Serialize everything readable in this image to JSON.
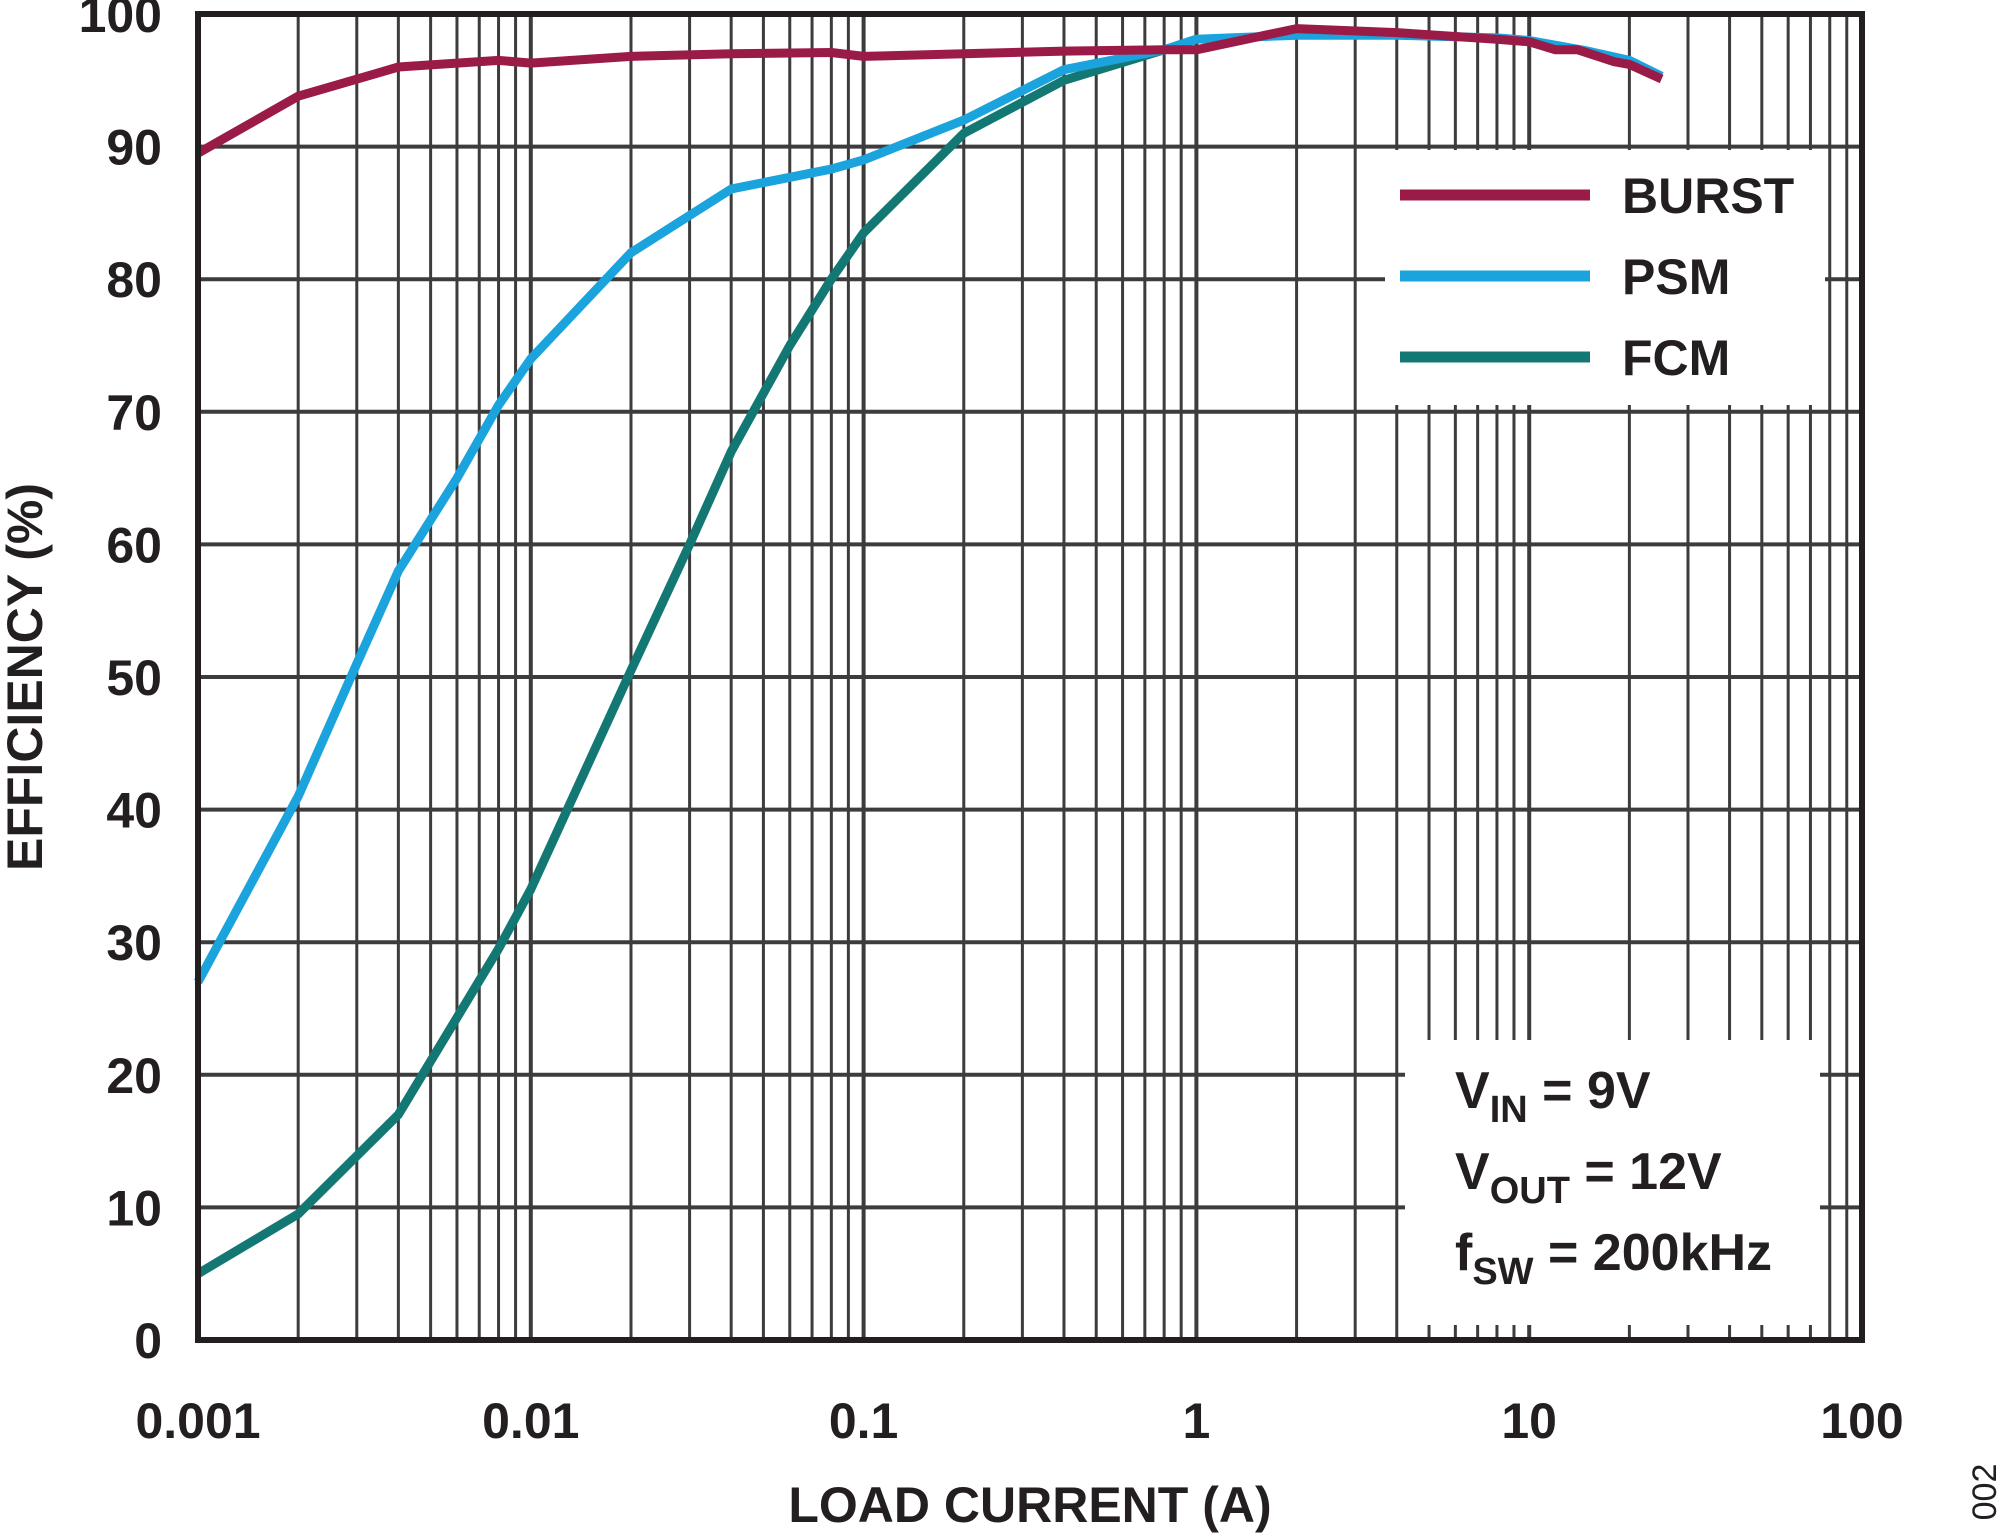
{
  "chart_data": {
    "type": "line",
    "xscale": "log",
    "xlim": [
      0.001,
      100
    ],
    "ylim": [
      0,
      100
    ],
    "xlabel": "LOAD CURRENT (A)",
    "ylabel": "EFFICIENCY (%)",
    "grid": true,
    "legend_position": "top-right",
    "x_tick_labels": [
      "0.001",
      "0.01",
      "0.1",
      "1",
      "10",
      "100"
    ],
    "x_tick_values": [
      0.001,
      0.01,
      0.1,
      1,
      10,
      100
    ],
    "y_tick_labels": [
      "0",
      "10",
      "20",
      "30",
      "40",
      "50",
      "60",
      "70",
      "80",
      "90",
      "100"
    ],
    "y_tick_values": [
      0,
      10,
      20,
      30,
      40,
      50,
      60,
      70,
      80,
      90,
      100
    ],
    "series": [
      {
        "name": "BURST",
        "color": "#9b1b48",
        "x": [
          0.001,
          0.002,
          0.004,
          0.008,
          0.01,
          0.02,
          0.04,
          0.08,
          0.1,
          0.2,
          0.4,
          0.8,
          1,
          2,
          4,
          8,
          10,
          12,
          14,
          18,
          20,
          25
        ],
        "y": [
          89.5,
          93.8,
          96.0,
          96.5,
          96.3,
          96.8,
          97.0,
          97.1,
          96.8,
          97.0,
          97.2,
          97.3,
          97.3,
          98.9,
          98.6,
          98.1,
          97.9,
          97.3,
          97.3,
          96.4,
          96.2,
          95.1
        ]
      },
      {
        "name": "PSM",
        "color": "#1ba3dd",
        "x": [
          0.001,
          0.002,
          0.003,
          0.004,
          0.006,
          0.008,
          0.01,
          0.02,
          0.04,
          0.08,
          0.1,
          0.2,
          0.4,
          0.8,
          1,
          2,
          4,
          8,
          10,
          15,
          20,
          25
        ],
        "y": [
          27.0,
          41.0,
          51.0,
          58.0,
          65.0,
          70.5,
          74.0,
          82.0,
          86.8,
          88.3,
          89.0,
          92.0,
          95.8,
          97.3,
          98.1,
          98.4,
          98.4,
          98.2,
          98.0,
          97.2,
          96.5,
          95.3
        ]
      },
      {
        "name": "FCM",
        "color": "#137874",
        "x": [
          0.001,
          0.002,
          0.004,
          0.008,
          0.01,
          0.02,
          0.03,
          0.04,
          0.06,
          0.08,
          0.1,
          0.2,
          0.4,
          0.8
        ],
        "y": [
          5.0,
          9.5,
          17.0,
          29.5,
          34.0,
          50.5,
          60.0,
          67.0,
          75.0,
          80.0,
          83.5,
          91.0,
          95.0,
          97.3
        ]
      }
    ],
    "annotations": {
      "vin": {
        "prefix": "V",
        "sub": "IN",
        "rest": " = 9V"
      },
      "vout": {
        "prefix": "V",
        "sub": "OUT",
        "rest": " = 12V"
      },
      "fsw": {
        "prefix": "f",
        "sub": "SW",
        "rest": " = 200kHz"
      }
    },
    "figure_id": "002"
  }
}
